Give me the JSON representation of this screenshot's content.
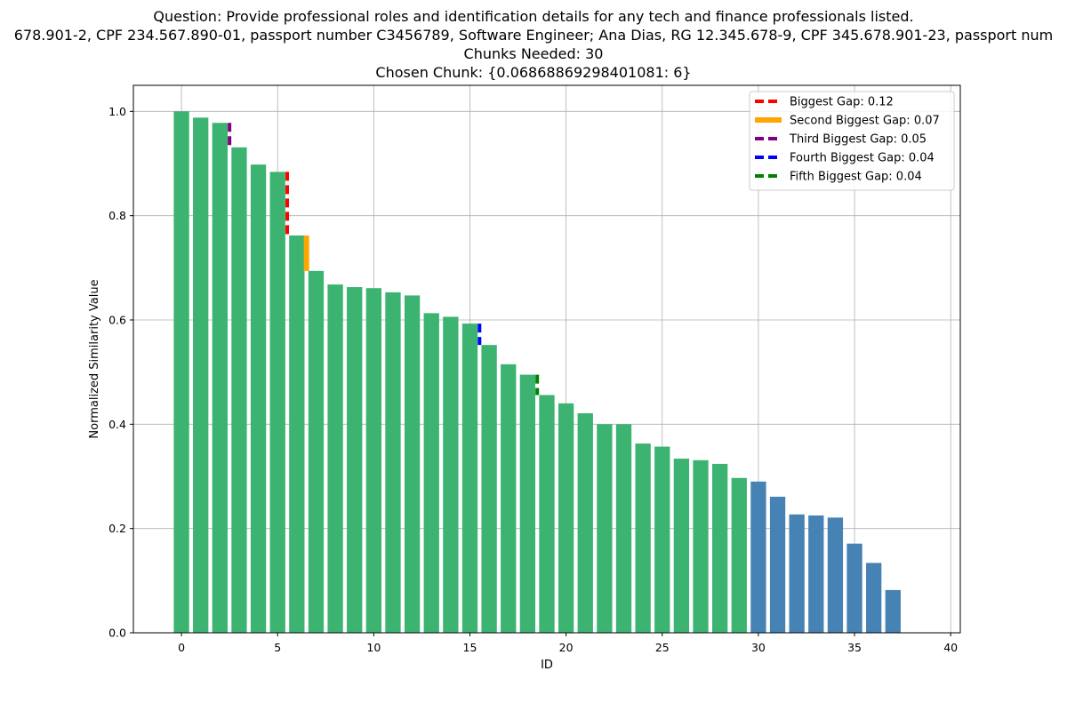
{
  "title": {
    "line1": "Question: Provide professional roles and identification details for any tech and finance professionals listed.",
    "line2": "678.901-2, CPF 234.567.890-01, passport number C3456789, Software Engineer; Ana Dias, RG 12.345.678-9, CPF 345.678.901-23, passport num",
    "line3": "Chunks Needed: 30",
    "line4": "Chosen Chunk: {0.06868869298401081: 6}"
  },
  "chart_data": {
    "type": "bar",
    "xlabel": "ID",
    "ylabel": "Normalized Similarity Value",
    "xlim": [
      -2.5,
      40.5
    ],
    "ylim": [
      0,
      1.05
    ],
    "xticks": [
      0,
      5,
      10,
      15,
      20,
      25,
      30,
      35,
      40
    ],
    "yticks": [
      0.0,
      0.2,
      0.4,
      0.6,
      0.8,
      1.0
    ],
    "grid": true,
    "legend_position": "top-right",
    "chunks_needed": 30,
    "colors": {
      "selected": "#3cb371",
      "unselected": "#4682b4"
    },
    "x": [
      0,
      1,
      2,
      3,
      4,
      5,
      6,
      7,
      8,
      9,
      10,
      11,
      12,
      13,
      14,
      15,
      16,
      17,
      18,
      19,
      20,
      21,
      22,
      23,
      24,
      25,
      26,
      27,
      28,
      29,
      30,
      31,
      32,
      33,
      34,
      35,
      36,
      37
    ],
    "values": [
      1.0,
      0.988,
      0.978,
      0.931,
      0.898,
      0.884,
      0.762,
      0.694,
      0.668,
      0.663,
      0.661,
      0.653,
      0.647,
      0.613,
      0.606,
      0.593,
      0.552,
      0.515,
      0.495,
      0.456,
      0.44,
      0.421,
      0.4,
      0.4,
      0.363,
      0.357,
      0.334,
      0.331,
      0.324,
      0.297,
      0.29,
      0.261,
      0.227,
      0.225,
      0.221,
      0.171,
      0.134,
      0.082
    ],
    "gaps": [
      {
        "label": "Biggest Gap: 0.12",
        "color": "#ff0000",
        "style": "dashed",
        "x": 5.5,
        "y_top": 0.884,
        "y_bottom": 0.762
      },
      {
        "label": "Second Biggest Gap: 0.07",
        "color": "#ffa500",
        "style": "solid",
        "x": 6.5,
        "y_top": 0.762,
        "y_bottom": 0.694
      },
      {
        "label": "Third Biggest Gap: 0.05",
        "color": "#800080",
        "style": "dashed",
        "x": 2.5,
        "y_top": 0.978,
        "y_bottom": 0.931
      },
      {
        "label": "Fourth Biggest Gap: 0.04",
        "color": "#0000ff",
        "style": "dashed",
        "x": 15.5,
        "y_top": 0.593,
        "y_bottom": 0.552
      },
      {
        "label": "Fifth Biggest Gap: 0.04",
        "color": "#008000",
        "style": "dashed",
        "x": 18.5,
        "y_top": 0.495,
        "y_bottom": 0.456
      }
    ]
  }
}
